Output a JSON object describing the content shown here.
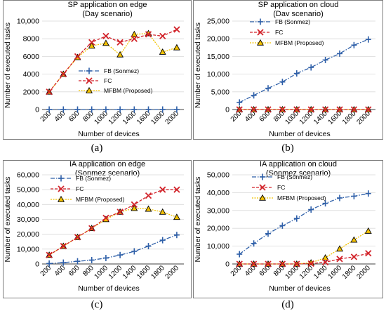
{
  "chart_data": [
    {
      "type": "line",
      "caption": "(a)",
      "title": [
        "SP application on edge",
        "(Day scenario)"
      ],
      "xlabel": "Number of devices",
      "ylabel": "Number of executed tasks",
      "x": [
        "200",
        "400",
        "600",
        "800",
        "1000",
        "1200",
        "1400",
        "1600",
        "1800",
        "2000"
      ],
      "ylim": [
        0,
        10000
      ],
      "yticks": [
        0,
        2000,
        4000,
        6000,
        8000,
        10000
      ],
      "ytick_labels": [
        "0",
        "2000",
        "4000",
        "6000",
        "8000",
        "10,000"
      ],
      "grid": true,
      "legend_position": "center-right",
      "series": [
        {
          "name": "FB (Sonmez)",
          "style": "fb",
          "values": [
            0,
            0,
            0,
            0,
            0,
            0,
            0,
            0,
            0,
            0
          ]
        },
        {
          "name": "FC",
          "style": "fc",
          "values": [
            2000,
            4000,
            6000,
            7600,
            8300,
            7600,
            8000,
            8500,
            8300,
            9050
          ]
        },
        {
          "name": "MFBM (Proposed)",
          "style": "mfbm",
          "values": [
            2000,
            4000,
            5900,
            7200,
            7500,
            6200,
            8500,
            8600,
            6500,
            7000
          ]
        }
      ]
    },
    {
      "type": "line",
      "caption": "(b)",
      "title": [
        "SP application on cloud",
        "(Dav scenario)"
      ],
      "xlabel": "Number of devices",
      "ylabel": "Number of executed tasks",
      "x": [
        "200",
        "400",
        "600",
        "800",
        "1000",
        "1200",
        "1400",
        "1600",
        "1800",
        "2000"
      ],
      "ylim": [
        0,
        25000
      ],
      "yticks": [
        0,
        5000,
        10000,
        15000,
        20000,
        25000
      ],
      "ytick_labels": [
        "0",
        "5,000",
        "10,000",
        "15,000",
        "20,000",
        "25,000"
      ],
      "grid": true,
      "legend_position": "top-left",
      "series": [
        {
          "name": "FB (Sonmez)",
          "style": "fb",
          "values": [
            2000,
            4000,
            6000,
            7800,
            10200,
            11900,
            14000,
            15800,
            18200,
            19800
          ]
        },
        {
          "name": "FC",
          "style": "fc",
          "values": [
            0,
            0,
            0,
            0,
            0,
            0,
            0,
            0,
            0,
            0
          ]
        },
        {
          "name": "MFBM (Proposed)",
          "style": "mfbm",
          "values": [
            0,
            0,
            0,
            0,
            0,
            0,
            0,
            0,
            0,
            0
          ]
        }
      ]
    },
    {
      "type": "line",
      "caption": "(c)",
      "title": [
        "IA application on edge",
        "(Sonmez scenario)"
      ],
      "xlabel": "Number of devices",
      "ylabel": "Number of executed tasks",
      "x": [
        "200",
        "400",
        "600",
        "800",
        "1000",
        "1200",
        "1400",
        "1600",
        "1800",
        "2000"
      ],
      "ylim": [
        0,
        60000
      ],
      "yticks": [
        0,
        10000,
        20000,
        30000,
        40000,
        50000,
        60000
      ],
      "ytick_labels": [
        "0",
        "10,000",
        "20,000",
        "30,000",
        "40,000",
        "50,000",
        "60,000"
      ],
      "grid": true,
      "legend_position": "top-left",
      "series": [
        {
          "name": "FB (Sonmez)",
          "style": "fb",
          "values": [
            300,
            900,
            1800,
            2600,
            4000,
            6000,
            8500,
            12000,
            16000,
            19500
          ]
        },
        {
          "name": "FC",
          "style": "fc",
          "values": [
            6000,
            12000,
            18000,
            24000,
            31000,
            35000,
            40000,
            46000,
            50000,
            50000
          ]
        },
        {
          "name": "MFBM (Proposed)",
          "style": "mfbm",
          "values": [
            6000,
            12000,
            18000,
            24000,
            30000,
            35000,
            37500,
            37000,
            35000,
            31500
          ]
        }
      ]
    },
    {
      "type": "line",
      "caption": "(d)",
      "title": [
        "IA application on cloud",
        "(Sonmez scenario)"
      ],
      "xlabel": "Number of devices",
      "ylabel": "Number of executed tasks",
      "x": [
        "200",
        "400",
        "600",
        "800",
        "1000",
        "1200",
        "1400",
        "1600",
        "1800",
        "2000"
      ],
      "ylim": [
        0,
        50000
      ],
      "yticks": [
        0,
        10000,
        20000,
        30000,
        40000,
        50000
      ],
      "ytick_labels": [
        "0",
        "10,000",
        "20,000",
        "30,000",
        "40,000",
        "50,000"
      ],
      "grid": true,
      "legend_position": "top-left",
      "series": [
        {
          "name": "FB (Sonmez)",
          "style": "fb",
          "values": [
            5500,
            11500,
            17000,
            21500,
            25500,
            30500,
            34000,
            37000,
            38000,
            39500
          ]
        },
        {
          "name": "FC",
          "style": "fc",
          "values": [
            0,
            0,
            0,
            0,
            0,
            200,
            1000,
            2800,
            4000,
            6000
          ]
        },
        {
          "name": "MFBM (Proposed)",
          "style": "mfbm",
          "values": [
            0,
            0,
            0,
            0,
            0,
            700,
            3500,
            8500,
            13500,
            18500
          ]
        }
      ]
    }
  ],
  "colors": {
    "fb": "#2e5fa8",
    "fc": "#d2232a",
    "mfbm": "#f2c200",
    "marker_fill": "#f5c200",
    "frame": "#7f7f7f"
  }
}
